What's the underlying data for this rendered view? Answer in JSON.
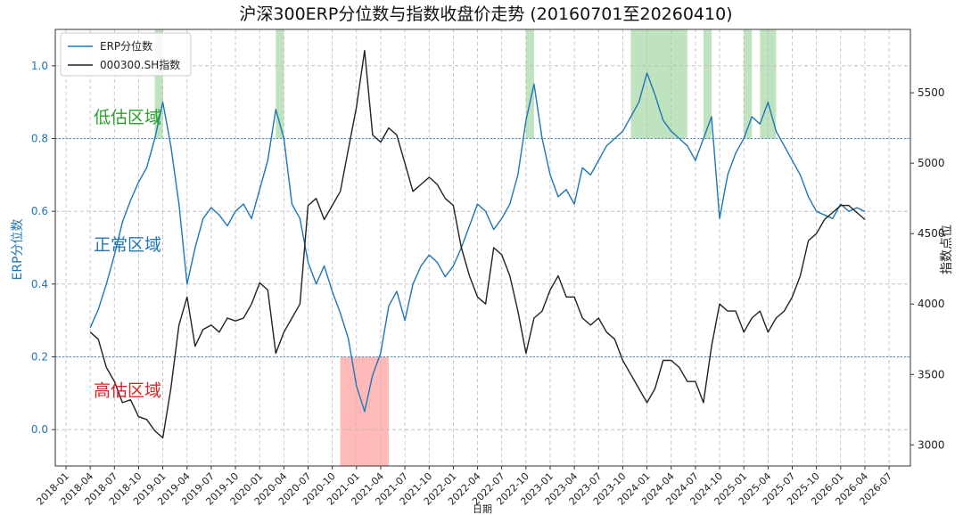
{
  "chart_data": {
    "type": "line",
    "title": "沪深300ERP分位数与指数收盘价走势 (20160701至20260410)",
    "xlabel": "日期",
    "ylabel_left": "ERP分位数",
    "ylabel_right": "指数点位",
    "ylim_left": [
      -0.1,
      1.1
    ],
    "ylim_right": [
      2850,
      5950
    ],
    "yticks_left": [
      "0.0",
      "0.2",
      "0.4",
      "0.6",
      "0.8",
      "1.0"
    ],
    "yticks_right": [
      "3000",
      "3500",
      "4000",
      "4500",
      "5000",
      "5500"
    ],
    "x_tick_labels": [
      "2018-01",
      "2018-04",
      "2018-07",
      "2018-10",
      "2019-01",
      "2019-04",
      "2019-07",
      "2019-10",
      "2020-01",
      "2020-04",
      "2020-07",
      "2020-10",
      "2021-01",
      "2021-04",
      "2021-07",
      "2021-10",
      "2022-01",
      "2022-04",
      "2022-07",
      "2022-10",
      "2023-01",
      "2023-04",
      "2023-07",
      "2023-10",
      "2024-01",
      "2024-04",
      "2024-07",
      "2024-10",
      "2025-01",
      "2025-04",
      "2025-07",
      "2025-10",
      "2026-01",
      "2026-04",
      "2026-07"
    ],
    "grid": true,
    "legend_position": "top-left",
    "thresholds": [
      0.2,
      0.8
    ],
    "zone_labels": [
      {
        "text": "低估区域",
        "color": "#2ca02c",
        "y": 0.86
      },
      {
        "text": "正常区域",
        "color": "#1f77b4",
        "y": 0.51
      },
      {
        "text": "高估区域",
        "color": "#d62728",
        "y": 0.11
      }
    ],
    "series": [
      {
        "name": "ERP分位数",
        "axis": "left",
        "color": "#1f77b4",
        "x": [
          "2018-04",
          "2018-05",
          "2018-06",
          "2018-07",
          "2018-08",
          "2018-09",
          "2018-10",
          "2018-11",
          "2018-12",
          "2019-01",
          "2019-02",
          "2019-03",
          "2019-04",
          "2019-05",
          "2019-06",
          "2019-07",
          "2019-08",
          "2019-09",
          "2019-10",
          "2019-11",
          "2019-12",
          "2020-01",
          "2020-02",
          "2020-03",
          "2020-04",
          "2020-05",
          "2020-06",
          "2020-07",
          "2020-08",
          "2020-09",
          "2020-10",
          "2020-11",
          "2020-12",
          "2021-01",
          "2021-02",
          "2021-03",
          "2021-04",
          "2021-05",
          "2021-06",
          "2021-07",
          "2021-08",
          "2021-09",
          "2021-10",
          "2021-11",
          "2021-12",
          "2022-01",
          "2022-02",
          "2022-03",
          "2022-04",
          "2022-05",
          "2022-06",
          "2022-07",
          "2022-08",
          "2022-09",
          "2022-10",
          "2022-11",
          "2022-12",
          "2023-01",
          "2023-02",
          "2023-03",
          "2023-04",
          "2023-05",
          "2023-06",
          "2023-07",
          "2023-08",
          "2023-09",
          "2023-10",
          "2023-11",
          "2023-12",
          "2024-01",
          "2024-02",
          "2024-03",
          "2024-04",
          "2024-05",
          "2024-06",
          "2024-07",
          "2024-08",
          "2024-09",
          "2024-10",
          "2024-11",
          "2024-12",
          "2025-01",
          "2025-02",
          "2025-03",
          "2025-04",
          "2025-05",
          "2025-06",
          "2025-07",
          "2025-08",
          "2025-09",
          "2025-10",
          "2025-11",
          "2025-12",
          "2026-01",
          "2026-02",
          "2026-03",
          "2026-04"
        ],
        "values": [
          0.28,
          0.33,
          0.4,
          0.48,
          0.57,
          0.63,
          0.68,
          0.72,
          0.8,
          0.9,
          0.78,
          0.62,
          0.4,
          0.5,
          0.58,
          0.61,
          0.59,
          0.56,
          0.6,
          0.62,
          0.58,
          0.66,
          0.74,
          0.88,
          0.8,
          0.62,
          0.58,
          0.46,
          0.4,
          0.45,
          0.38,
          0.32,
          0.25,
          0.12,
          0.05,
          0.15,
          0.21,
          0.34,
          0.38,
          0.3,
          0.4,
          0.45,
          0.48,
          0.46,
          0.42,
          0.45,
          0.5,
          0.56,
          0.62,
          0.6,
          0.55,
          0.58,
          0.62,
          0.7,
          0.85,
          0.95,
          0.8,
          0.7,
          0.64,
          0.66,
          0.62,
          0.72,
          0.7,
          0.74,
          0.78,
          0.8,
          0.82,
          0.86,
          0.9,
          0.98,
          0.92,
          0.85,
          0.82,
          0.8,
          0.78,
          0.74,
          0.8,
          0.86,
          0.58,
          0.7,
          0.76,
          0.8,
          0.86,
          0.84,
          0.9,
          0.82,
          0.78,
          0.74,
          0.7,
          0.64,
          0.6,
          0.59,
          0.58,
          0.62,
          0.6,
          0.61,
          0.6
        ]
      },
      {
        "name": "000300.SH指数",
        "axis": "right",
        "color": "#222222",
        "x": [
          "2018-04",
          "2018-05",
          "2018-06",
          "2018-07",
          "2018-08",
          "2018-09",
          "2018-10",
          "2018-11",
          "2018-12",
          "2019-01",
          "2019-02",
          "2019-03",
          "2019-04",
          "2019-05",
          "2019-06",
          "2019-07",
          "2019-08",
          "2019-09",
          "2019-10",
          "2019-11",
          "2019-12",
          "2020-01",
          "2020-02",
          "2020-03",
          "2020-04",
          "2020-05",
          "2020-06",
          "2020-07",
          "2020-08",
          "2020-09",
          "2020-10",
          "2020-11",
          "2020-12",
          "2021-01",
          "2021-02",
          "2021-03",
          "2021-04",
          "2021-05",
          "2021-06",
          "2021-07",
          "2021-08",
          "2021-09",
          "2021-10",
          "2021-11",
          "2021-12",
          "2022-01",
          "2022-02",
          "2022-03",
          "2022-04",
          "2022-05",
          "2022-06",
          "2022-07",
          "2022-08",
          "2022-09",
          "2022-10",
          "2022-11",
          "2022-12",
          "2023-01",
          "2023-02",
          "2023-03",
          "2023-04",
          "2023-05",
          "2023-06",
          "2023-07",
          "2023-08",
          "2023-09",
          "2023-10",
          "2023-11",
          "2023-12",
          "2024-01",
          "2024-02",
          "2024-03",
          "2024-04",
          "2024-05",
          "2024-06",
          "2024-07",
          "2024-08",
          "2024-09",
          "2024-10",
          "2024-11",
          "2024-12",
          "2025-01",
          "2025-02",
          "2025-03",
          "2025-04",
          "2025-05",
          "2025-06",
          "2025-07",
          "2025-08",
          "2025-09",
          "2025-10",
          "2025-11",
          "2025-12",
          "2026-01",
          "2026-02",
          "2026-03",
          "2026-04"
        ],
        "values": [
          3800,
          3750,
          3550,
          3450,
          3300,
          3320,
          3200,
          3180,
          3100,
          3050,
          3400,
          3850,
          4050,
          3700,
          3820,
          3850,
          3800,
          3900,
          3880,
          3900,
          4000,
          4150,
          4100,
          3650,
          3800,
          3900,
          4000,
          4700,
          4750,
          4600,
          4700,
          4800,
          5100,
          5400,
          5800,
          5200,
          5150,
          5250,
          5200,
          5000,
          4800,
          4850,
          4900,
          4850,
          4750,
          4700,
          4400,
          4200,
          4050,
          4000,
          4400,
          4350,
          4200,
          3950,
          3650,
          3900,
          3950,
          4100,
          4200,
          4050,
          4050,
          3900,
          3850,
          3900,
          3800,
          3750,
          3600,
          3500,
          3400,
          3300,
          3400,
          3600,
          3600,
          3550,
          3450,
          3450,
          3300,
          3700,
          4000,
          3950,
          3950,
          3800,
          3900,
          3950,
          3800,
          3900,
          3950,
          4050,
          4200,
          4450,
          4500,
          4600,
          4650,
          4700,
          4700,
          4650,
          4600
        ]
      }
    ],
    "low_valuation_shading": [
      [
        "2018-12",
        "2019-01"
      ],
      [
        "2020-03",
        "2020-04"
      ],
      [
        "2022-10",
        "2022-11"
      ],
      [
        "2023-11",
        "2024-06"
      ],
      [
        "2024-08",
        "2024-09"
      ],
      [
        "2025-01",
        "2025-02"
      ],
      [
        "2025-03",
        "2025-05"
      ]
    ],
    "high_valuation_shading": [
      [
        "2020-11",
        "2021-05"
      ]
    ]
  }
}
